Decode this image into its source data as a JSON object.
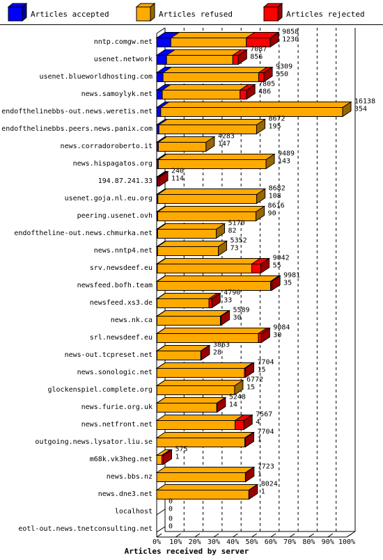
{
  "colors": {
    "accepted": "#0000ff",
    "refused": "#ffaa00",
    "rejected": "#ff0000"
  },
  "legend": [
    {
      "key": "accepted",
      "label": "Articles accepted"
    },
    {
      "key": "refused",
      "label": "Articles refused"
    },
    {
      "key": "rejected",
      "label": "Articles rejected"
    }
  ],
  "chart_data": {
    "type": "bar",
    "orientation": "horizontal",
    "stacked": true,
    "xlabel": "Articles received by server",
    "x_ticks": [
      "0%",
      "10%",
      "20%",
      "30%",
      "40%",
      "50%",
      "60%",
      "70%",
      "80%",
      "90%",
      "100%"
    ],
    "x_max": 16500,
    "categories": [
      "nntp.comgw.net",
      "usenet.network",
      "usenet.blueworldhosting.com",
      "news.samoylyk.net",
      "endofthelinebbs-out.news.weretis.net",
      "endofthelinebbs.peers.news.panix.com",
      "news.corradoroberto.it",
      "news.hispagatos.org",
      "194.87.241.33",
      "usenet.goja.nl.eu.org",
      "peering.usenet.ovh",
      "endoftheline-out.news.chmurka.net",
      "news.nntp4.net",
      "srv.newsdeef.eu",
      "newsfeed.bofh.team",
      "newsfeed.xs3.de",
      "news.nk.ca",
      "srl.newsdeef.eu",
      "news-out.tcpreset.net",
      "news.sonologic.net",
      "glockenspiel.complete.org",
      "news.furie.org.uk",
      "news.netfront.net",
      "outgoing.news.lysator.liu.se",
      "m68k.vk3heg.net",
      "news.bbs.nz",
      "news.dne3.net",
      "localhost",
      "eotl-out.news.tnetconsulting.net"
    ],
    "totals": [
      9858,
      7087,
      9309,
      7805,
      16138,
      8672,
      4283,
      9489,
      240,
      8682,
      8616,
      5170,
      5352,
      9042,
      9981,
      4790,
      5589,
      9084,
      3863,
      7704,
      6772,
      5248,
      7567,
      7704,
      575,
      7723,
      8024,
      0,
      0
    ],
    "accepted_counts": [
      1230,
      856,
      550,
      486,
      354,
      195,
      147,
      143,
      114,
      108,
      90,
      82,
      73,
      55,
      35,
      33,
      30,
      30,
      28,
      15,
      15,
      14,
      4,
      1,
      1,
      1,
      1,
      0,
      0
    ],
    "series": [
      {
        "name": "Articles accepted",
        "values": [
          1230,
          856,
          550,
          486,
          354,
          195,
          147,
          143,
          114,
          108,
          90,
          82,
          73,
          55,
          35,
          33,
          30,
          30,
          28,
          15,
          15,
          14,
          4,
          1,
          1,
          1,
          1,
          0,
          0
        ]
      },
      {
        "name": "Articles refused",
        "values": [
          6550,
          5750,
          8300,
          6750,
          15800,
          8600,
          4200,
          9400,
          0,
          8650,
          8600,
          5100,
          5300,
          8200,
          9850,
          4500,
          5500,
          8800,
          3800,
          7600,
          6750,
          5200,
          6800,
          7650,
          450,
          7700,
          8000,
          0,
          0
        ]
      },
      {
        "name": "Articles rejected",
        "values": [
          2078,
          481,
          459,
          569,
          -16,
          -123,
          -64,
          -54,
          126,
          -76,
          -74,
          -12,
          -21,
          787,
          96,
          257,
          59,
          254,
          35,
          89,
          7,
          34,
          763,
          53,
          124,
          22,
          23,
          0,
          0
        ]
      }
    ]
  }
}
